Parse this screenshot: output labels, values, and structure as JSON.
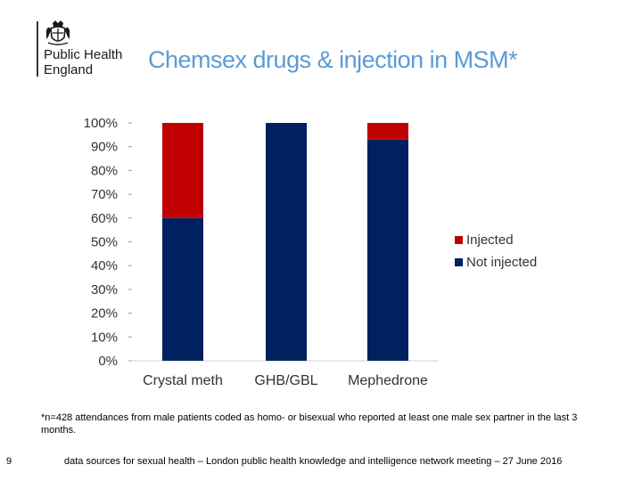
{
  "logo": {
    "line1": "Public Health",
    "line2": "England",
    "crest_icon": "royal-crest-icon"
  },
  "slide": {
    "title": "Chemsex drugs & injection in MSM*",
    "footnote": "*n=428 attendances from male patients coded as homo- or bisexual who reported at least one male sex partner in the last 3 months.",
    "page_number": "9",
    "footer": "data sources for sexual health – London public health knowledge and intelligence network meeting – 27 June 2016"
  },
  "colors": {
    "title": "#5b9bd5",
    "injected": "#c00000",
    "not_injected": "#002060"
  },
  "chart_data": {
    "type": "bar",
    "stacked": true,
    "categories": [
      "Crystal meth",
      "GHB/GBL",
      "Mephedrone"
    ],
    "series": [
      {
        "name": "Not injected",
        "values": [
          60,
          100,
          93
        ],
        "color": "#002060"
      },
      {
        "name": "Injected",
        "values": [
          40,
          0,
          7
        ],
        "color": "#c00000"
      }
    ],
    "legend_order": [
      "Injected",
      "Not injected"
    ],
    "legend_position": "right",
    "yticks": [
      "0%",
      "10%",
      "20%",
      "30%",
      "40%",
      "50%",
      "60%",
      "70%",
      "80%",
      "90%",
      "100%"
    ],
    "ylim": [
      0,
      100
    ],
    "title": "",
    "xlabel": "",
    "ylabel": ""
  }
}
